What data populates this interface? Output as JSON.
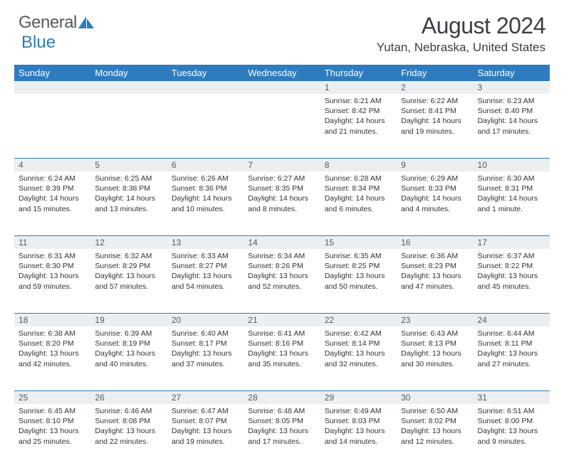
{
  "brand": {
    "name_a": "General",
    "name_b": "Blue"
  },
  "title": "August 2024",
  "location": "Yutan, Nebraska, United States",
  "colors": {
    "header_bg": "#2f7bbf",
    "header_fg": "#ffffff",
    "daynum_bg": "#eceff1",
    "row_border": "#2f7bbf",
    "text": "#333333",
    "logo_gray": "#555b60"
  },
  "weekdays": [
    "Sunday",
    "Monday",
    "Tuesday",
    "Wednesday",
    "Thursday",
    "Friday",
    "Saturday"
  ],
  "weeks": [
    [
      null,
      null,
      null,
      null,
      {
        "n": "1",
        "sr": "6:21 AM",
        "ss": "8:42 PM",
        "dl": "14 hours and 21 minutes."
      },
      {
        "n": "2",
        "sr": "6:22 AM",
        "ss": "8:41 PM",
        "dl": "14 hours and 19 minutes."
      },
      {
        "n": "3",
        "sr": "6:23 AM",
        "ss": "8:40 PM",
        "dl": "14 hours and 17 minutes."
      }
    ],
    [
      {
        "n": "4",
        "sr": "6:24 AM",
        "ss": "8:39 PM",
        "dl": "14 hours and 15 minutes."
      },
      {
        "n": "5",
        "sr": "6:25 AM",
        "ss": "8:38 PM",
        "dl": "14 hours and 13 minutes."
      },
      {
        "n": "6",
        "sr": "6:26 AM",
        "ss": "8:36 PM",
        "dl": "14 hours and 10 minutes."
      },
      {
        "n": "7",
        "sr": "6:27 AM",
        "ss": "8:35 PM",
        "dl": "14 hours and 8 minutes."
      },
      {
        "n": "8",
        "sr": "6:28 AM",
        "ss": "8:34 PM",
        "dl": "14 hours and 6 minutes."
      },
      {
        "n": "9",
        "sr": "6:29 AM",
        "ss": "8:33 PM",
        "dl": "14 hours and 4 minutes."
      },
      {
        "n": "10",
        "sr": "6:30 AM",
        "ss": "8:31 PM",
        "dl": "14 hours and 1 minute."
      }
    ],
    [
      {
        "n": "11",
        "sr": "6:31 AM",
        "ss": "8:30 PM",
        "dl": "13 hours and 59 minutes."
      },
      {
        "n": "12",
        "sr": "6:32 AM",
        "ss": "8:29 PM",
        "dl": "13 hours and 57 minutes."
      },
      {
        "n": "13",
        "sr": "6:33 AM",
        "ss": "8:27 PM",
        "dl": "13 hours and 54 minutes."
      },
      {
        "n": "14",
        "sr": "6:34 AM",
        "ss": "8:26 PM",
        "dl": "13 hours and 52 minutes."
      },
      {
        "n": "15",
        "sr": "6:35 AM",
        "ss": "8:25 PM",
        "dl": "13 hours and 50 minutes."
      },
      {
        "n": "16",
        "sr": "6:36 AM",
        "ss": "8:23 PM",
        "dl": "13 hours and 47 minutes."
      },
      {
        "n": "17",
        "sr": "6:37 AM",
        "ss": "8:22 PM",
        "dl": "13 hours and 45 minutes."
      }
    ],
    [
      {
        "n": "18",
        "sr": "6:38 AM",
        "ss": "8:20 PM",
        "dl": "13 hours and 42 minutes."
      },
      {
        "n": "19",
        "sr": "6:39 AM",
        "ss": "8:19 PM",
        "dl": "13 hours and 40 minutes."
      },
      {
        "n": "20",
        "sr": "6:40 AM",
        "ss": "8:17 PM",
        "dl": "13 hours and 37 minutes."
      },
      {
        "n": "21",
        "sr": "6:41 AM",
        "ss": "8:16 PM",
        "dl": "13 hours and 35 minutes."
      },
      {
        "n": "22",
        "sr": "6:42 AM",
        "ss": "8:14 PM",
        "dl": "13 hours and 32 minutes."
      },
      {
        "n": "23",
        "sr": "6:43 AM",
        "ss": "8:13 PM",
        "dl": "13 hours and 30 minutes."
      },
      {
        "n": "24",
        "sr": "6:44 AM",
        "ss": "8:11 PM",
        "dl": "13 hours and 27 minutes."
      }
    ],
    [
      {
        "n": "25",
        "sr": "6:45 AM",
        "ss": "8:10 PM",
        "dl": "13 hours and 25 minutes."
      },
      {
        "n": "26",
        "sr": "6:46 AM",
        "ss": "8:08 PM",
        "dl": "13 hours and 22 minutes."
      },
      {
        "n": "27",
        "sr": "6:47 AM",
        "ss": "8:07 PM",
        "dl": "13 hours and 19 minutes."
      },
      {
        "n": "28",
        "sr": "6:48 AM",
        "ss": "8:05 PM",
        "dl": "13 hours and 17 minutes."
      },
      {
        "n": "29",
        "sr": "6:49 AM",
        "ss": "8:03 PM",
        "dl": "13 hours and 14 minutes."
      },
      {
        "n": "30",
        "sr": "6:50 AM",
        "ss": "8:02 PM",
        "dl": "13 hours and 12 minutes."
      },
      {
        "n": "31",
        "sr": "6:51 AM",
        "ss": "8:00 PM",
        "dl": "13 hours and 9 minutes."
      }
    ]
  ],
  "labels": {
    "sunrise": "Sunrise:",
    "sunset": "Sunset:",
    "daylight": "Daylight:"
  }
}
